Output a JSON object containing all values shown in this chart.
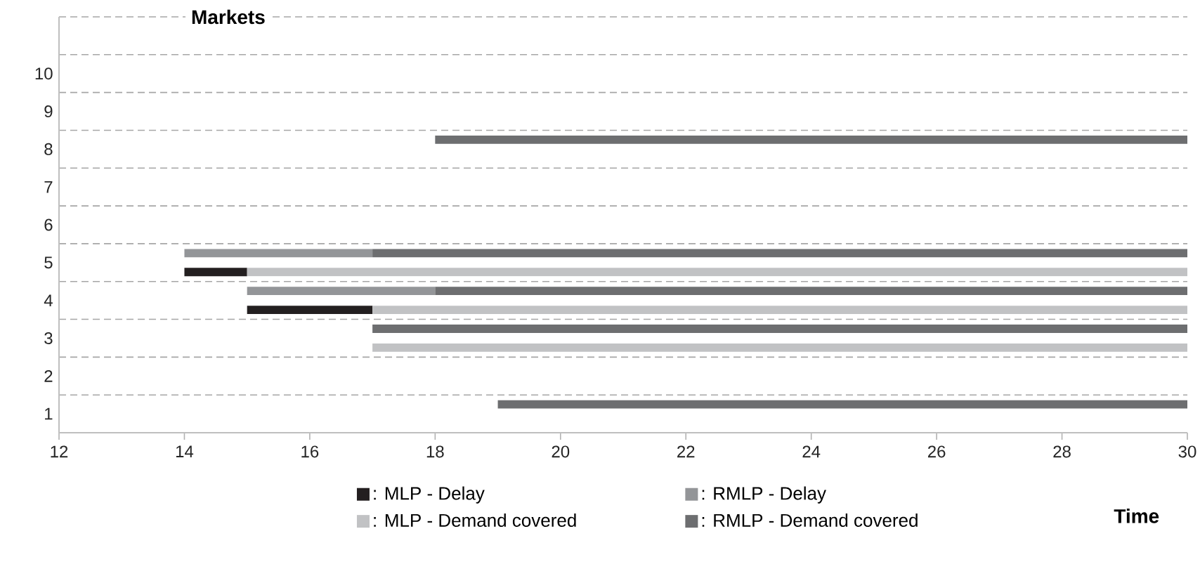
{
  "chart_data": {
    "type": "bar",
    "orientation": "horizontal",
    "ylabel": "Markets",
    "xlabel": "Time",
    "categories": [
      null,
      "10",
      "9",
      "8",
      "7",
      "6",
      "5",
      "4",
      "3",
      "2",
      "1"
    ],
    "xlim": [
      12,
      30
    ],
    "xticks": [
      12,
      14,
      16,
      18,
      20,
      22,
      24,
      26,
      28,
      30
    ],
    "grid": "y",
    "legend": "bottom",
    "series": [
      {
        "name": ": MLP - Delay",
        "color": "#231f20",
        "values": [
          null,
          null,
          null,
          null,
          null,
          null,
          1,
          2,
          null,
          null,
          null
        ],
        "base": [
          null,
          null,
          null,
          null,
          null,
          null,
          14,
          15,
          null,
          null,
          null
        ]
      },
      {
        "name": ": RMLP - Delay",
        "color": "#939598",
        "values": [
          null,
          null,
          null,
          null,
          null,
          null,
          3,
          3,
          null,
          null,
          null
        ],
        "base": [
          null,
          null,
          null,
          null,
          null,
          null,
          14,
          15,
          null,
          null,
          null
        ]
      },
      {
        "name": ": MLP - Demand covered",
        "color": "#c1c2c4",
        "values": [
          null,
          null,
          null,
          null,
          null,
          null,
          15,
          13,
          13,
          null,
          null
        ],
        "base": [
          null,
          null,
          null,
          null,
          null,
          null,
          15,
          17,
          17,
          null,
          null
        ]
      },
      {
        "name": ": RMLP - Demand covered",
        "color": "#6d6e70",
        "values": [
          null,
          null,
          null,
          12,
          null,
          null,
          13,
          12,
          13,
          null,
          11
        ],
        "base": [
          null,
          null,
          null,
          18,
          null,
          null,
          17,
          18,
          17,
          null,
          19
        ]
      }
    ]
  }
}
